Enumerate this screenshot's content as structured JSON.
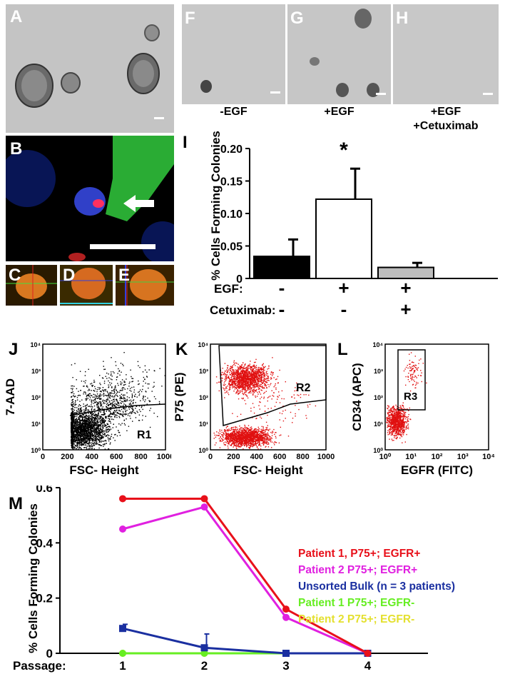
{
  "panels": {
    "A": "A",
    "B": "B",
    "C": "C",
    "D": "D",
    "E": "E",
    "F": "F",
    "G": "G",
    "H": "H",
    "I": "I",
    "J": "J",
    "K": "K",
    "L": "L",
    "M": "M"
  },
  "captions": {
    "F": "-EGF",
    "G": "+EGF",
    "H_line1": "+EGF",
    "H_line2": "+Cetuximab"
  },
  "colors": {
    "black_bar": "#000000",
    "white_bar": "#ffffff",
    "grey_bar": "#bdbdbd",
    "flow_red": "#e01010",
    "patient1_pos": "#e8101a",
    "patient2_pos": "#e020e0",
    "bulk": "#1a2fa0",
    "patient1_neg": "#66ee22",
    "patient2_neg": "#e4e030"
  },
  "chart_data": [
    {
      "type": "bar",
      "panel": "I",
      "categories": [
        "-EGF",
        "+EGF",
        "+EGF +Cetuximab"
      ],
      "values": [
        0.034,
        0.122,
        0.017
      ],
      "errors": [
        0.026,
        0.047,
        0.007
      ],
      "significance": [
        "",
        "*",
        ""
      ],
      "ylabel": "% Cells Forming Colonies",
      "ylim": [
        0,
        0.2
      ],
      "yticks": [
        "0",
        "0.05",
        "0.10",
        "0.15",
        "0.20"
      ],
      "row_labels": {
        "egf": "EGF:",
        "cetuximab": "Cetuximab:"
      },
      "egf_signs": [
        "-",
        "+",
        "+"
      ],
      "cetuximab_signs": [
        "-",
        "-",
        "+"
      ]
    },
    {
      "type": "scatter",
      "panel": "J",
      "xlabel": "FSC- Height",
      "ylabel": "7-AAD",
      "xticks": [
        "0",
        "200",
        "400",
        "600",
        "800",
        "1000"
      ],
      "yticks": [
        "10⁰",
        "10¹",
        "10²",
        "10³",
        "10⁴"
      ],
      "gate": "R1"
    },
    {
      "type": "scatter",
      "panel": "K",
      "xlabel": "FSC- Height",
      "ylabel": "P75 (PE)",
      "xticks": [
        "0",
        "200",
        "400",
        "600",
        "800",
        "1000"
      ],
      "yticks": [
        "10⁰",
        "10¹",
        "10²",
        "10³",
        "10⁴"
      ],
      "gate": "R2"
    },
    {
      "type": "scatter",
      "panel": "L",
      "xlabel": "EGFR (FITC)",
      "ylabel": "CD34 (APC)",
      "xticks": [
        "10⁰",
        "10¹",
        "10²",
        "10³",
        "10⁴"
      ],
      "yticks": [
        "10⁰",
        "10¹",
        "10²",
        "10³",
        "10⁴"
      ],
      "gate": "R3"
    },
    {
      "type": "line",
      "panel": "M",
      "xlabel": "Passage:",
      "x": [
        1,
        2,
        3,
        4
      ],
      "ylabel": "% Cells Forming Colonies",
      "ylim": [
        0,
        0.6
      ],
      "yticks": [
        "0",
        "0.2",
        "0.4",
        "0.6"
      ],
      "series": [
        {
          "name": "Patient 1, P75+; EGFR+",
          "color": "#e8101a",
          "values": [
            0.56,
            0.56,
            0.16,
            0.0
          ]
        },
        {
          "name": "Patient 2 P75+; EGFR+",
          "color": "#e020e0",
          "values": [
            0.45,
            0.53,
            0.13,
            0.0
          ]
        },
        {
          "name": "Unsorted Bulk (n = 3 patients)",
          "color": "#1a2fa0",
          "values": [
            0.09,
            0.02,
            0.0,
            0.0
          ],
          "errors": [
            0.015,
            0.05,
            0,
            0
          ]
        },
        {
          "name": "Patient 1 P75+; EGFR-",
          "color": "#66ee22",
          "values": [
            0.0,
            0.0,
            0.0,
            0.0
          ]
        },
        {
          "name": "Patient 2 P75+; EGFR-",
          "color": "#e4e030",
          "values": [
            0.0,
            0.0,
            0.0,
            0.0
          ]
        }
      ]
    }
  ]
}
